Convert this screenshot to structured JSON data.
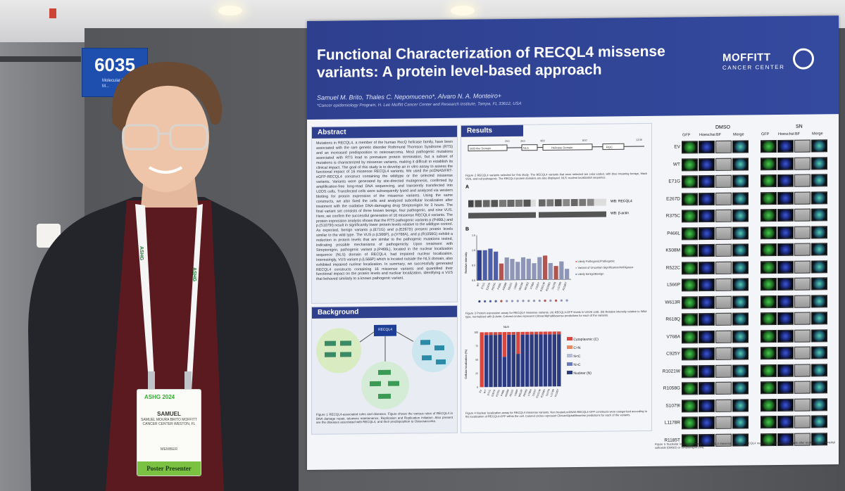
{
  "booth": {
    "number": "6035",
    "subtitle": "Molecular Bi... Genetic M..."
  },
  "poster": {
    "title": "Functional Characterization of RECQL4 missense variants: A protein level-based approach",
    "authors": "Samuel M. Brito, Thales C. Nepomuceno*, Alvaro N. A. Monteiro+",
    "affiliation": "*Cancer epidemiology Program, H. Lee Moffitt Cancer Center and Research Institute, Tampa, FL 33612, USA",
    "logo_main": "MOFFITT",
    "logo_sub": "CANCER CENTER",
    "abstract_heading": "Abstract",
    "abstract_text": "Mutations in RECQL4, a member of the human RecQ helicase family, have been associated with the rare genetic disorder Rothmund Thomson Syndrome (RTS) and an increased predisposition to osteosarcoma. Most pathogenic mutations associated with RTS lead to premature protein termination, but a subset of mutations is characterized by missense variants, making it difficult to establish its clinical impact. The goal of this study is to develop an in vitro assay to assess the functional impact of 16 missense RECQL4 variants. We used the pcDNA5/FRT-eGFP-RECQL4 construct containing the wildtype or the selected missense variants. Variants were generated by site-directed mutagenesis, confirmed by amplification-free long-read DNA sequencing, and transiently transfected into U2OS cells. Transfected cells were subsequently lysed and analyzed via western blotting for protein expression of the missense variants. Using the same constructs, we also fixed the cells and analyzed subcellular localization after treatment with the oxidative DNA-damaging drug Streptonigrin for 3 hours. The final variant set consists of three known benign, four pathogenic, and nine VUS. Here, we confirm the successful generation of 16 missense RECQL4 variants. The protein expression analysis shows that the RTS pathogenic variants p.(P466L) and p.(S1079I) result in significantly lower protein levels relative to the wildtype control. As expected, benign variants p.(E71G) and p.(E267D) present protein levels similar to the wild type. The VUS p.(L566P), p.(V768A), and p.(R1058G) exhibit a reduction in protein levels that are similar to the pathogenic mutations tested, indicating possible mechanisms of pathogenicity. Upon treatment with Streptonigrin, pathogenic variant p.(P466L), located in the nuclear localization sequence (NLS) domain of RECQL4, had impaired nuclear localization. Interestingly, VUS variant p.(L566P) which is located outside the NLS domain, also exhibited impaired nuclear localization. In summary, we successfully generated RECQL4 constructs containing 16 missense variants and quantified their functional impact on the protein levels and nuclear localization, identifying a VUS that behaved similarly to a known pathogenic variant.",
    "background_heading": "Background",
    "background_center": "RECQL4",
    "fig1_caption": "Figure 1 RECQL4-associated roles and diseases. Figure shows the various roles of RECQL4 in DNA damage repair, telomere maintenance, Replication and Replication initiation. Also present are the diseases associated with RECQL4, and their predisposition to Osteosarcoma.",
    "results_heading": "Results",
    "panel_a": "A",
    "panel_b": "B",
    "domain_labels": [
      "Sld2-like Domain",
      "NLS",
      "Helicase Domain",
      "RQC"
    ],
    "domain_numbers": [
      "250",
      "363",
      "489",
      "800",
      "1208"
    ],
    "fig2_caption": "Figure 2 RECQL4 variants selected for this study. The RECQL4 variants that were selected are color-coded, with blue meaning benign, black VUS, and red pathogenic. The RECQL4 protein domains are also displayed. NLS: nuclear localization sequence.",
    "wb_labels": [
      "WB: RECQL4",
      "WB: β-actin"
    ],
    "chart_ylabel": "Relative intensity",
    "chart_legend": [
      "Likely Pathogenic/Pathogenic",
      "Variant of Uncertain Significance/Ambiguous",
      "Likely benign/Benign"
    ],
    "fig3_caption": "Figure 3 Protein expression assay for RECQL4 missense variants. (A) RECQL4-GFP levels in U2OS cells. (B) Relative intensity relative to Wild-type, normalized with β-Actin. Colored circles represent Clinvar/AlphaMissense predictions for each of the variants.",
    "loc_ylabel": "Cellular localization (%)",
    "loc_nls": "NLS",
    "loc_legend": [
      "Cytoplasmic (C)",
      "C=N",
      "N<C",
      "N>C",
      "Nuclear (N)"
    ],
    "fig4_caption": "Figure 4 Nuclear localization assay for RECQL4 missense variants. Non treated pcDNA5-RECQL4-GFP constructs were categorized according to the localization of RECQL4-GFP within the cell. Colored circles represent Clinvar/AlphaMissense predictions for each of the variants.",
    "micro_conditions": [
      "DMSO",
      "SN"
    ],
    "micro_columns": [
      "GFP",
      "Hoeschst",
      "BF",
      "Merge"
    ],
    "micro_rows": [
      "EV",
      "WT",
      "E71G",
      "E267D",
      "R375C",
      "P466L",
      "K508M",
      "R522C",
      "L566P",
      "W613R",
      "R618Q",
      "V768A",
      "C925Y",
      "R1021W",
      "R1058G",
      "S1079I",
      "L1178R",
      "R1185T"
    ],
    "fig5_caption": "Figure 5 Nucleolar localization assay for RECQL4 missense variants. RECQL4 nucleolar localization of variants after treatment with dimethyl sulfoxide (DMSO) or Streptonigrin (SN)."
  },
  "badge": {
    "logo": "ASHG 2024",
    "name": "SAMUEL",
    "info": "SAMUEL MOURA BRITO MOFFITT CANCER CENTER WESTON, FL",
    "member": "MEMBER",
    "role": "Poster Presenter"
  },
  "lanyard": {
    "text": "ASHG"
  },
  "chart_data": [
    {
      "type": "bar",
      "title": "",
      "xlabel": "",
      "ylabel": "Relative intensity",
      "categories": [
        "WT",
        "E71G",
        "E267D",
        "R375C",
        "P466L",
        "K508M",
        "R522C",
        "L566P",
        "W613R",
        "R618Q",
        "V768A",
        "C925Y",
        "R1021W",
        "R1058G",
        "S1079I",
        "L1178R",
        "R1185T"
      ],
      "values": [
        1.0,
        1.0,
        1.05,
        0.95,
        0.55,
        0.75,
        0.7,
        0.6,
        0.75,
        0.7,
        0.55,
        0.75,
        0.8,
        0.55,
        0.45,
        0.6,
        0.35
      ],
      "ylim": [
        0,
        1.5
      ]
    },
    {
      "type": "bar",
      "title": "",
      "xlabel": "",
      "ylabel": "Cellular localization (%)",
      "categories": [
        "EV",
        "WT",
        "E71G",
        "E267D",
        "R375C",
        "P466L",
        "K508M",
        "R522C",
        "L566P",
        "W613R",
        "R618Q",
        "V768A",
        "C925Y",
        "R1021W",
        "R1058G",
        "S1079I",
        "L1178R",
        "R1185T"
      ],
      "series": [
        {
          "name": "Cytoplasmic (C)",
          "values": [
            100,
            5,
            5,
            5,
            5,
            45,
            5,
            5,
            40,
            5,
            5,
            5,
            5,
            5,
            5,
            5,
            5,
            5
          ]
        },
        {
          "name": "Nuclear (N)",
          "values": [
            0,
            95,
            95,
            95,
            95,
            55,
            95,
            95,
            60,
            95,
            95,
            95,
            95,
            95,
            95,
            95,
            95,
            95
          ]
        }
      ],
      "ylim": [
        0,
        100
      ]
    }
  ]
}
